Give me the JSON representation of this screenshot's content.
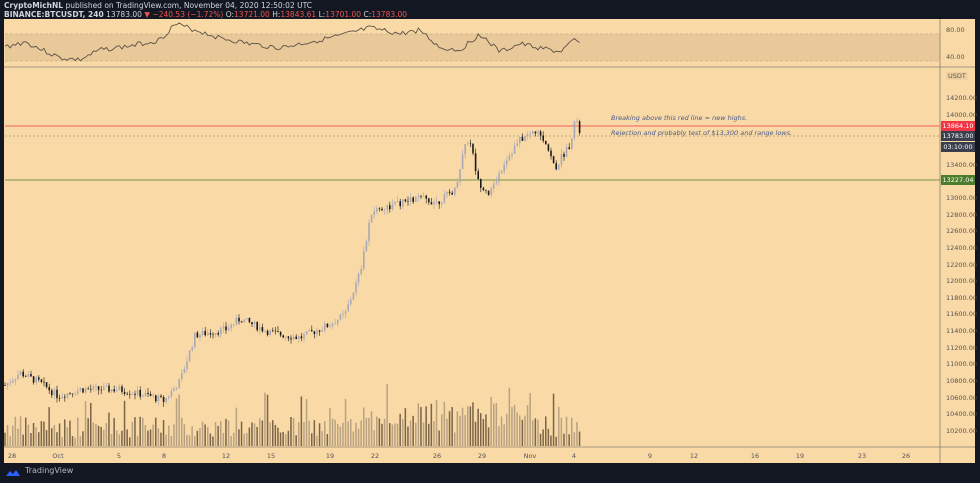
{
  "header": {
    "publisher": "CryptoMichNL",
    "published_text": "published on TradingView.com, November 04, 2020 12:50:02 UTC",
    "symbol": "BINANCE:BTCUSDT, 240",
    "last": "13783.00",
    "change": "▼ −240.53 (−1.72%)",
    "open_label": "O:",
    "open": "13721.00",
    "high_label": "H:",
    "high": "13843.61",
    "low_label": "L:",
    "low": "13701.00",
    "close_label": "C:",
    "close": "13783.00"
  },
  "annotations": {
    "line1": "Breaking above this red line = new highs.",
    "line2": "Rejection and probably test of $13,300 and range lows."
  },
  "price_axis": {
    "currency": "USDT",
    "ticks": [
      "14200.00",
      "14000.00",
      "13400.00",
      "13000.00",
      "12800.00",
      "12600.00",
      "12400.00",
      "12200.00",
      "12000.00",
      "11800.00",
      "11600.00",
      "11400.00",
      "11200.00",
      "11000.00",
      "10800.00",
      "10600.00",
      "10400.00",
      "10200.00"
    ],
    "red_line_label": "13864.10",
    "last_price_label": "13783.00",
    "countdown_label": "03:10:00",
    "green_line_label": "13227.04"
  },
  "rsi_axis": {
    "ticks": [
      "80.00",
      "40.00"
    ]
  },
  "time_axis": {
    "ticks": [
      "28",
      "Oct",
      "5",
      "8",
      "12",
      "15",
      "19",
      "22",
      "26",
      "29",
      "Nov",
      "4",
      "9",
      "12",
      "16",
      "19",
      "23",
      "26"
    ]
  },
  "footer": {
    "brand": "TradingView"
  },
  "colors": {
    "background": "#f9d9a6",
    "red_line": "#f23645",
    "green_line": "#4c7d2a",
    "up": "#a8a8b8",
    "down": "#1a1a1a",
    "frame": "#131722"
  },
  "chart_data": {
    "type": "candlestick",
    "title": "BINANCE:BTCUSDT, 240",
    "xlabel": "",
    "ylabel": "USDT",
    "ylim": [
      10100,
      14400
    ],
    "x_ticks": [
      "28",
      "Oct",
      "5",
      "8",
      "12",
      "15",
      "19",
      "22",
      "26",
      "29",
      "Nov",
      "4",
      "9",
      "12",
      "16",
      "19",
      "23",
      "26"
    ],
    "horizontal_lines": [
      {
        "price": 13864.1,
        "color": "red",
        "note": "Breaking above this red line = new highs."
      },
      {
        "price": 13227.04,
        "color": "green",
        "note": "range low"
      }
    ],
    "last_price": 13783.0,
    "ohlc_last": {
      "open": 13721.0,
      "high": 13843.61,
      "low": 13701.0,
      "close": 13783.0
    },
    "approx_close_path": [
      {
        "date": "Sep 28",
        "close": 10750
      },
      {
        "date": "Oct 1",
        "close": 10600
      },
      {
        "date": "Oct 5",
        "close": 10700
      },
      {
        "date": "Oct 8",
        "close": 10650
      },
      {
        "date": "Oct 10",
        "close": 11300
      },
      {
        "date": "Oct 12",
        "close": 11450
      },
      {
        "date": "Oct 15",
        "close": 11400
      },
      {
        "date": "Oct 19",
        "close": 11550
      },
      {
        "date": "Oct 21",
        "close": 12800
      },
      {
        "date": "Oct 22",
        "close": 12950
      },
      {
        "date": "Oct 26",
        "close": 13050
      },
      {
        "date": "Oct 27",
        "close": 13700
      },
      {
        "date": "Oct 28",
        "close": 13200
      },
      {
        "date": "Oct 29",
        "close": 13400
      },
      {
        "date": "Oct 31",
        "close": 13800
      },
      {
        "date": "Nov 2",
        "close": 13400
      },
      {
        "date": "Nov 3",
        "close": 13550
      },
      {
        "date": "Nov 4",
        "close": 13783
      }
    ],
    "rsi": {
      "levels": [
        40,
        80
      ],
      "range_shaded": [
        40,
        80
      ]
    },
    "volume": "bars shown in bottom pane, no scale"
  }
}
